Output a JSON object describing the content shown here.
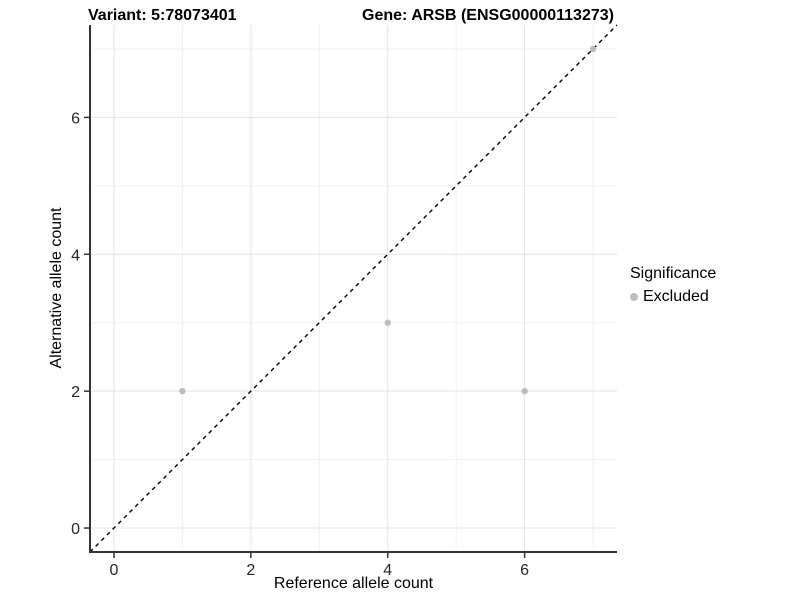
{
  "titles": {
    "left": "Variant: 5:78073401",
    "right": "Gene: ARSB (ENSG00000113273)"
  },
  "legend": {
    "title": "Significance",
    "items": [
      {
        "label": "Excluded",
        "color": "#bdbdbd"
      }
    ]
  },
  "colors": {
    "background": "#ffffff",
    "grid_major": "#e4e4e4",
    "grid_minor": "#f1f1f1",
    "axis_line": "#353535",
    "tick_text": "#262626",
    "reference_line": "#000000",
    "point_excluded": "#bdbdbd"
  },
  "chart_data": {
    "type": "scatter",
    "title_left": "Variant: 5:78073401",
    "title_right": "Gene: ARSB (ENSG00000113273)",
    "xlabel": "Reference allele count",
    "ylabel": "Alternative allele count",
    "xlim": [
      -0.35,
      7.35
    ],
    "ylim": [
      -0.35,
      7.35
    ],
    "x_ticks": [
      0,
      2,
      4,
      6
    ],
    "y_ticks": [
      0,
      2,
      4,
      6
    ],
    "x_minor": [
      1,
      3,
      5,
      7
    ],
    "y_minor": [
      1,
      3,
      5,
      7
    ],
    "grid": true,
    "legend_position": "right",
    "reference_line": {
      "kind": "identity",
      "slope": 1,
      "intercept": 0,
      "style": "dashed"
    },
    "series": [
      {
        "name": "Excluded",
        "color": "#bdbdbd",
        "points": [
          [
            1,
            2
          ],
          [
            4,
            3
          ],
          [
            6,
            2
          ],
          [
            7,
            7
          ]
        ]
      }
    ]
  }
}
